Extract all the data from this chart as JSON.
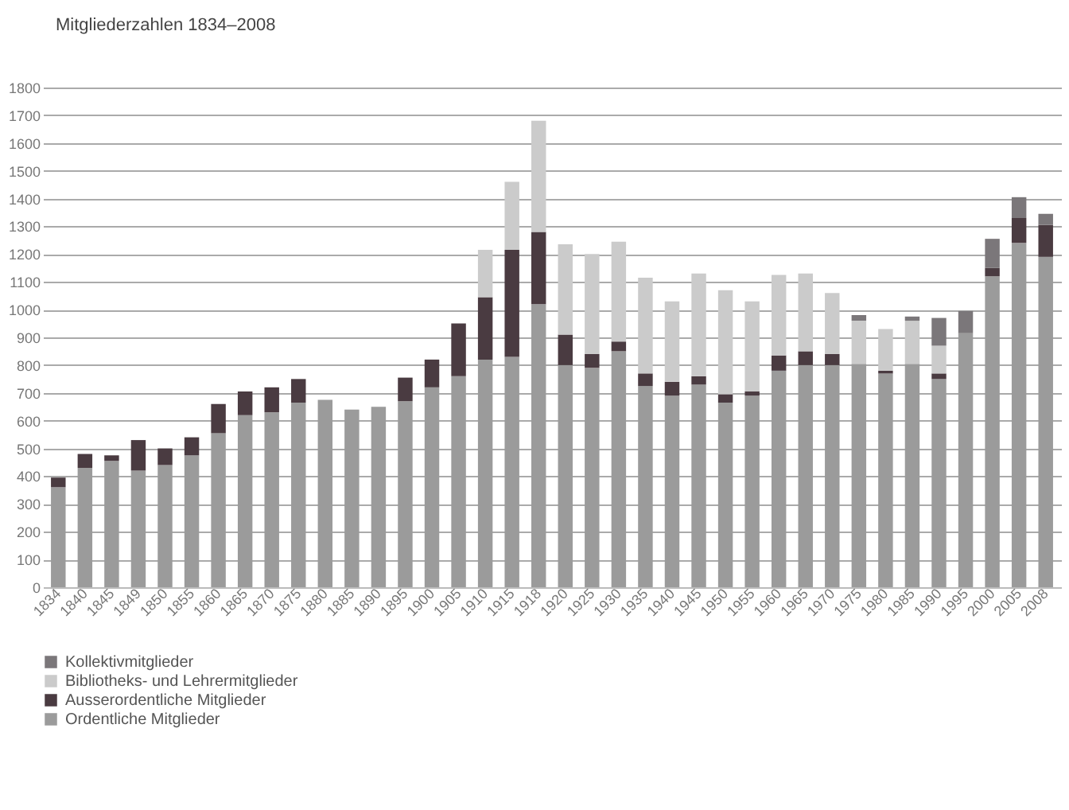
{
  "chart_data": {
    "type": "bar",
    "title": "Mitgliederzahlen 1834–2008",
    "stacked": true,
    "grid": "y",
    "legend": "bottom left",
    "categories": [
      "1834",
      "1840",
      "1845",
      "1849",
      "1850",
      "1855",
      "1860",
      "1865",
      "1870",
      "1875",
      "1880",
      "1885",
      "1890",
      "1895",
      "1900",
      "1905",
      "1910",
      "1915",
      "1918",
      "1920",
      "1925",
      "1930",
      "1935",
      "1940",
      "1945",
      "1950",
      "1955",
      "1960",
      "1965",
      "1970",
      "1975",
      "1980",
      "1985",
      "1990",
      "1995",
      "2000",
      "2005",
      "2008"
    ],
    "ylim": [
      0,
      1800
    ],
    "yticks": [
      0,
      100,
      200,
      300,
      400,
      500,
      600,
      700,
      800,
      900,
      1000,
      1100,
      1200,
      1300,
      1400,
      1500,
      1600,
      1700,
      1800
    ],
    "series": [
      {
        "name": "Ordentliche Mitglieder",
        "color": "#9b9b9b",
        "values": [
          360,
          430,
          455,
          420,
          440,
          475,
          555,
          620,
          630,
          665,
          675,
          640,
          650,
          670,
          720,
          760,
          820,
          830,
          1020,
          800,
          790,
          850,
          725,
          690,
          730,
          665,
          690,
          780,
          800,
          800,
          805,
          770,
          805,
          750,
          915,
          1120,
          1240,
          1190
        ]
      },
      {
        "name": "Ausserordentliche Mitglieder",
        "color": "#4a3b41",
        "values": [
          35,
          50,
          20,
          110,
          60,
          65,
          105,
          85,
          90,
          85,
          null,
          null,
          null,
          85,
          100,
          190,
          225,
          385,
          260,
          110,
          50,
          35,
          45,
          50,
          30,
          30,
          15,
          55,
          50,
          40,
          null,
          10,
          null,
          20,
          null,
          30,
          90,
          115
        ]
      },
      {
        "name": "Bibliotheks- und Lehrermitglieder",
        "color": "#cbcbcb",
        "values": [
          null,
          null,
          null,
          null,
          null,
          null,
          null,
          null,
          null,
          null,
          null,
          null,
          null,
          null,
          null,
          null,
          170,
          245,
          400,
          325,
          360,
          360,
          345,
          290,
          370,
          375,
          325,
          290,
          280,
          220,
          155,
          150,
          155,
          100,
          null,
          null,
          null,
          null
        ]
      },
      {
        "name": "Kollektivmitglieder",
        "color": "#7b777a",
        "values": [
          null,
          null,
          null,
          null,
          null,
          null,
          null,
          null,
          null,
          null,
          null,
          null,
          null,
          null,
          null,
          null,
          null,
          null,
          null,
          null,
          null,
          null,
          null,
          null,
          null,
          null,
          null,
          null,
          null,
          null,
          20,
          null,
          15,
          100,
          80,
          105,
          75,
          40
        ]
      }
    ]
  }
}
